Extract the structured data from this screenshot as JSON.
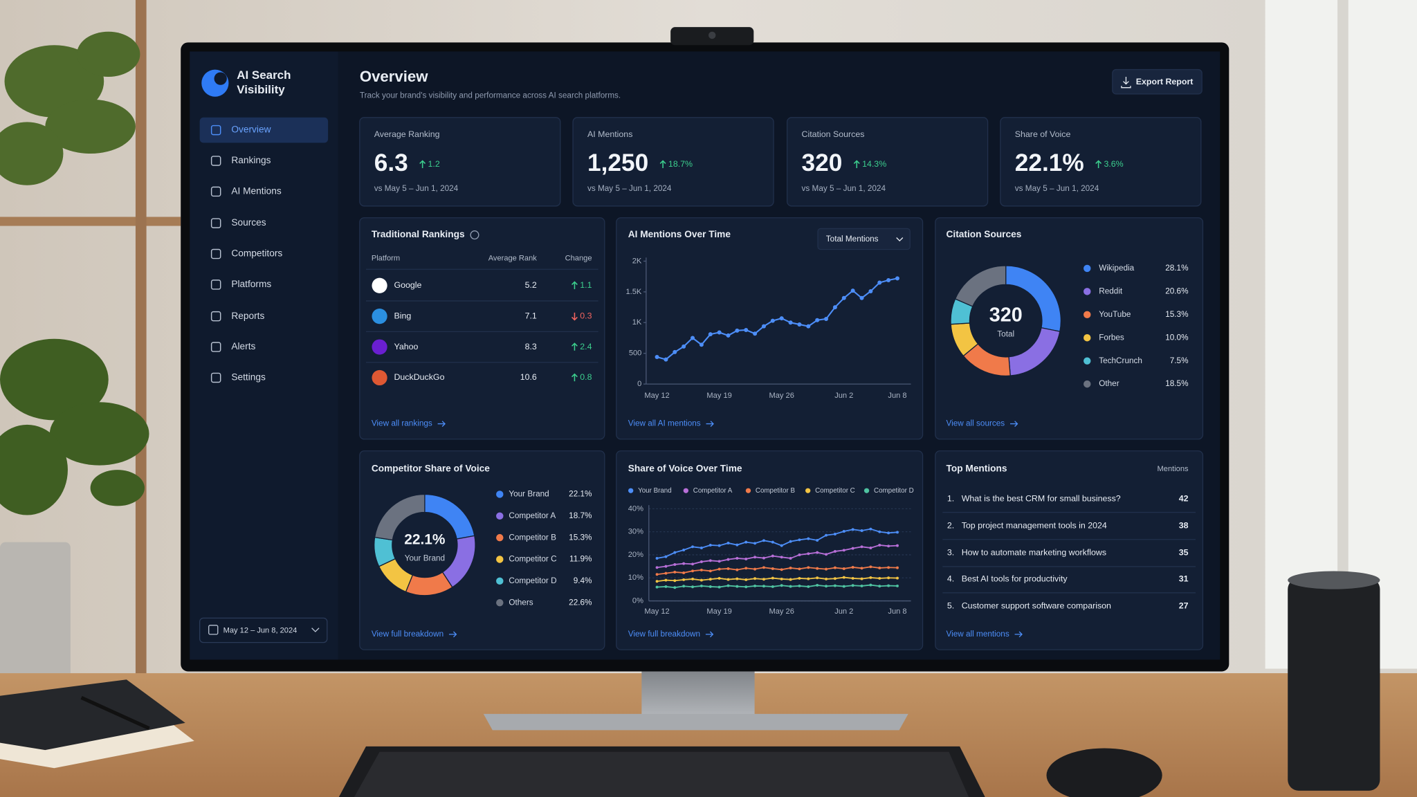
{
  "sidebar": {
    "brand": [
      "AI Search",
      "Visibility"
    ],
    "nav": [
      "Overview",
      "Rankings",
      "AI Mentions",
      "Sources",
      "Competitors",
      "Platforms",
      "Reports",
      "Alerts",
      "Settings"
    ],
    "active": 0,
    "date_range": "May 12 – Jun 8, 2024"
  },
  "header": {
    "title": "Overview",
    "subtitle": "Track your brand's visibility and performance across AI search platforms.",
    "export_button": "Export Report"
  },
  "kpis": [
    {
      "label": "Average Ranking",
      "value": "6.3",
      "change": "1.2",
      "period": "vs May 5 – Jun 1, 2024"
    },
    {
      "label": "AI Mentions",
      "value": "1,250",
      "change": "18.7%",
      "period": "vs May 5 – Jun 1, 2024"
    },
    {
      "label": "Citation Sources",
      "value": "320",
      "change": "14.3%",
      "period": "vs May 5 – Jun 1, 2024"
    },
    {
      "label": "Share of Voice",
      "value": "22.1%",
      "change": "3.6%",
      "period": "vs May 5 – Jun 1, 2024"
    }
  ],
  "rankings": {
    "title": "Traditional Rankings",
    "columns": [
      "Platform",
      "Average Rank",
      "Change"
    ],
    "rows": [
      {
        "platform": "Google",
        "rank": "5.2",
        "change": "1.1",
        "direction": "up",
        "color": "#ffffff"
      },
      {
        "platform": "Bing",
        "rank": "7.1",
        "change": "0.3",
        "direction": "down",
        "color": "#2b8fe0"
      },
      {
        "platform": "Yahoo",
        "rank": "8.3",
        "change": "2.4",
        "direction": "up",
        "color": "#6a1fd0"
      },
      {
        "platform": "DuckDuckGo",
        "rank": "10.6",
        "change": "0.8",
        "direction": "up",
        "color": "#de5833"
      }
    ],
    "link": "View all rankings"
  },
  "top_mentions": {
    "title": "Top Mentions",
    "column": "Mentions",
    "rows": [
      {
        "rank": "1.",
        "query": "What is the best CRM for small business?",
        "count": "42"
      },
      {
        "rank": "2.",
        "query": "Top project management tools in 2024",
        "count": "38"
      },
      {
        "rank": "3.",
        "query": "How to automate marketing workflows",
        "count": "35"
      },
      {
        "rank": "4.",
        "query": "Best AI tools for productivity",
        "count": "31"
      },
      {
        "rank": "5.",
        "query": "Customer support software comparison",
        "count": "27"
      }
    ],
    "link": "View all mentions"
  },
  "chart_data": [
    {
      "type": "line",
      "title": "AI Mentions Over Time",
      "dropdown": "Total Mentions",
      "categories": [
        "May 12",
        null,
        null,
        null,
        null,
        null,
        null,
        "May 19",
        null,
        null,
        null,
        null,
        null,
        null,
        "May 26",
        null,
        null,
        null,
        null,
        null,
        null,
        "Jun 2",
        null,
        null,
        null,
        null,
        null,
        "Jun 8"
      ],
      "values": [
        440,
        400,
        520,
        610,
        750,
        640,
        810,
        840,
        790,
        870,
        880,
        820,
        940,
        1030,
        1070,
        1000,
        970,
        940,
        1040,
        1060,
        1250,
        1400,
        1520,
        1400,
        1510,
        1650,
        1690,
        1720
      ],
      "color": "#4d8ef8",
      "ylim": [
        0,
        2000
      ],
      "yticks": [
        0,
        500,
        {
          "value": 1000,
          "label": "1K"
        },
        {
          "value": 1500,
          "label": "1.5K"
        },
        {
          "value": 2000,
          "label": "2K"
        }
      ],
      "grid": false,
      "link": "View all AI mentions"
    },
    {
      "type": "pie",
      "title": "Citation Sources",
      "donut": true,
      "categories": [
        "Wikipedia",
        "Reddit",
        "YouTube",
        "Forbes",
        "TechCrunch",
        "Other"
      ],
      "values": [
        28.1,
        20.6,
        15.3,
        10.0,
        7.5,
        18.5
      ],
      "value_labels": [
        "28.1%",
        "20.6%",
        "15.3%",
        "10.0%",
        "7.5%",
        "18.5%"
      ],
      "colors": [
        "#3f84f4",
        "#8a6fe3",
        "#f07a4a",
        "#f3c443",
        "#4fc0d4",
        "#6b7280"
      ],
      "center_text": "320",
      "center_label": "Total",
      "link": "View all sources"
    },
    {
      "type": "pie",
      "title": "Competitor Share of Voice",
      "donut": true,
      "categories": [
        "Your Brand",
        "Competitor A",
        "Competitor B",
        "Competitor C",
        "Competitor D",
        "Others"
      ],
      "values": [
        22.1,
        18.7,
        15.3,
        11.9,
        9.4,
        22.6
      ],
      "value_labels": [
        "22.1%",
        "18.7%",
        "15.3%",
        "11.9%",
        "9.4%",
        "22.6%"
      ],
      "colors": [
        "#3f84f4",
        "#8a6fe3",
        "#f07a4a",
        "#f3c443",
        "#4fc0d4",
        "#6b7280"
      ],
      "center_text": "22.1%",
      "center_label": "Your Brand",
      "link": "View full breakdown"
    },
    {
      "type": "line",
      "title": "Share of Voice Over Time",
      "categories": [
        "May 12",
        null,
        null,
        null,
        null,
        null,
        null,
        "May 19",
        null,
        null,
        null,
        null,
        null,
        null,
        "May 26",
        null,
        null,
        null,
        null,
        null,
        null,
        "Jun 2",
        null,
        null,
        null,
        null,
        null,
        "Jun 8"
      ],
      "series": [
        {
          "name": "Your Brand",
          "color": "#4d8ef8",
          "values": [
            18.5,
            19.2,
            21.0,
            22.1,
            23.5,
            23.0,
            24.2,
            24.0,
            25.1,
            24.3,
            25.5,
            25.0,
            26.2,
            25.5,
            24.0,
            25.8,
            26.5,
            27.0,
            26.3,
            28.5,
            29.0,
            30.2,
            31.0,
            30.5,
            31.2,
            30.0,
            29.5,
            29.8
          ]
        },
        {
          "name": "Competitor A",
          "color": "#b86fd8",
          "values": [
            14.5,
            15.0,
            15.8,
            16.2,
            16.0,
            17.0,
            17.5,
            17.2,
            18.0,
            18.5,
            18.2,
            19.0,
            18.6,
            19.5,
            19.0,
            18.5,
            20.0,
            20.5,
            21.0,
            20.2,
            21.5,
            22.0,
            22.8,
            23.5,
            23.0,
            24.2,
            23.8,
            24.0
          ]
        },
        {
          "name": "Competitor B",
          "color": "#f07a4a",
          "values": [
            11.5,
            12.0,
            12.5,
            12.2,
            13.0,
            13.4,
            13.0,
            13.8,
            14.0,
            13.5,
            14.2,
            13.8,
            14.5,
            14.0,
            13.6,
            14.3,
            13.9,
            14.5,
            14.1,
            13.8,
            14.4,
            14.0,
            14.6,
            14.2,
            14.8,
            14.3,
            14.5,
            14.4
          ]
        },
        {
          "name": "Competitor C",
          "color": "#f3c443",
          "values": [
            8.5,
            9.0,
            8.8,
            9.2,
            9.5,
            9.0,
            9.4,
            9.8,
            9.3,
            9.6,
            9.2,
            9.7,
            9.4,
            9.9,
            9.5,
            9.3,
            9.8,
            9.6,
            10.0,
            9.5,
            9.7,
            10.2,
            9.8,
            9.6,
            10.1,
            9.8,
            10.0,
            9.9
          ]
        },
        {
          "name": "Competitor D",
          "color": "#4fc3a1",
          "values": [
            6.0,
            6.2,
            5.8,
            6.4,
            6.1,
            6.5,
            6.2,
            6.0,
            6.6,
            6.3,
            6.1,
            6.5,
            6.4,
            6.2,
            6.7,
            6.3,
            6.5,
            6.2,
            6.8,
            6.4,
            6.6,
            6.3,
            6.7,
            6.5,
            6.9,
            6.4,
            6.6,
            6.5
          ]
        }
      ],
      "ylim": [
        0,
        40
      ],
      "yticks": [
        {
          "value": 0,
          "label": "0%"
        },
        {
          "value": 10,
          "label": "10%"
        },
        {
          "value": 20,
          "label": "20%"
        },
        {
          "value": 30,
          "label": "30%"
        },
        {
          "value": 40,
          "label": "40%"
        }
      ],
      "grid": true,
      "link": "View full breakdown"
    }
  ]
}
